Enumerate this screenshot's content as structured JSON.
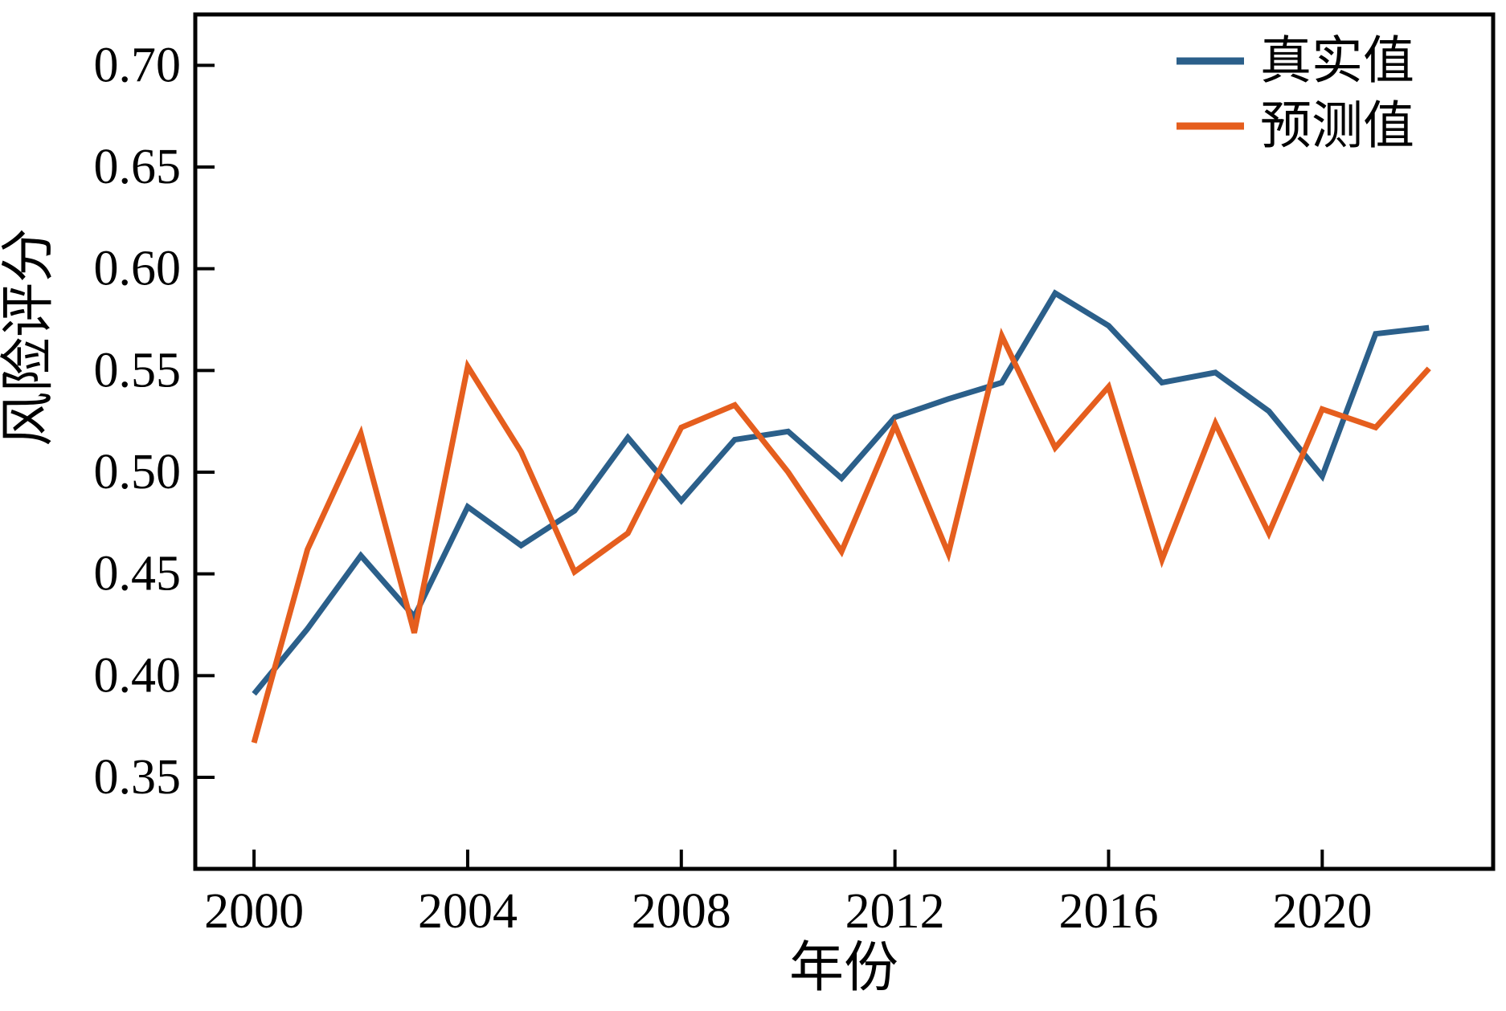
{
  "chart_data": {
    "type": "line",
    "title": "",
    "xlabel": "年份",
    "ylabel": "风险评分",
    "x": [
      2000,
      2001,
      2002,
      2003,
      2004,
      2005,
      2006,
      2007,
      2008,
      2009,
      2010,
      2011,
      2012,
      2013,
      2014,
      2015,
      2016,
      2017,
      2018,
      2019,
      2020,
      2021,
      2022
    ],
    "series": [
      {
        "name": "真实值",
        "color": "#2b5f8a",
        "values": [
          0.391,
          0.423,
          0.459,
          0.429,
          0.483,
          0.464,
          0.481,
          0.517,
          0.486,
          0.516,
          0.52,
          0.497,
          0.527,
          0.536,
          0.544,
          0.588,
          0.572,
          0.544,
          0.549,
          0.53,
          0.498,
          0.568,
          0.571
        ]
      },
      {
        "name": "预测值",
        "color": "#e55e1e",
        "values": [
          0.367,
          0.462,
          0.519,
          0.421,
          0.552,
          0.51,
          0.451,
          0.47,
          0.522,
          0.533,
          0.5,
          0.461,
          0.523,
          0.46,
          0.567,
          0.512,
          0.542,
          0.457,
          0.524,
          0.47,
          0.531,
          0.522,
          0.551
        ]
      }
    ],
    "xticks": [
      2000,
      2004,
      2008,
      2012,
      2016,
      2020
    ],
    "yticks": [
      0.35,
      0.4,
      0.45,
      0.5,
      0.55,
      0.6,
      0.65,
      0.7
    ],
    "xlim": [
      1998.9,
      2023.2
    ],
    "ylim": [
      0.305,
      0.725
    ],
    "grid": false,
    "legend_position": "upper right",
    "frame_color": "#000000"
  }
}
